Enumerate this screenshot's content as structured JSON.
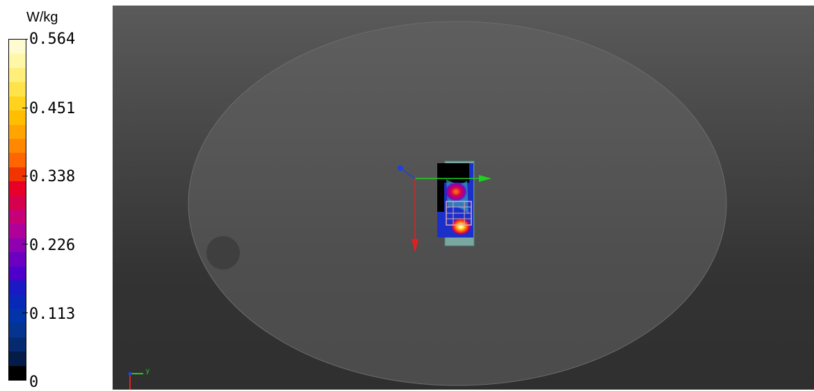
{
  "legend": {
    "unit": "W/kg",
    "ticks": [
      "0.564",
      "0.451",
      "0.338",
      "0.226",
      "0.113",
      "0"
    ],
    "colors": [
      "#fffbd0",
      "#fff7a8",
      "#ffee7a",
      "#ffe34a",
      "#ffd21e",
      "#ffbf00",
      "#ffa400",
      "#ff8800",
      "#ff6500",
      "#f23400",
      "#e80028",
      "#d6004d",
      "#c60077",
      "#b10099",
      "#8f00b1",
      "#6b00c2",
      "#4d00c9",
      "#1a1ac4",
      "#0829b8",
      "#0034a8",
      "#04348f",
      "#062a6f",
      "#041c4a",
      "#000000"
    ]
  },
  "viewport": {
    "axis_labels": {
      "y": "y"
    },
    "axis_colors": {
      "x": "#e02020",
      "y": "#20d020",
      "z": "#2040e0"
    }
  }
}
